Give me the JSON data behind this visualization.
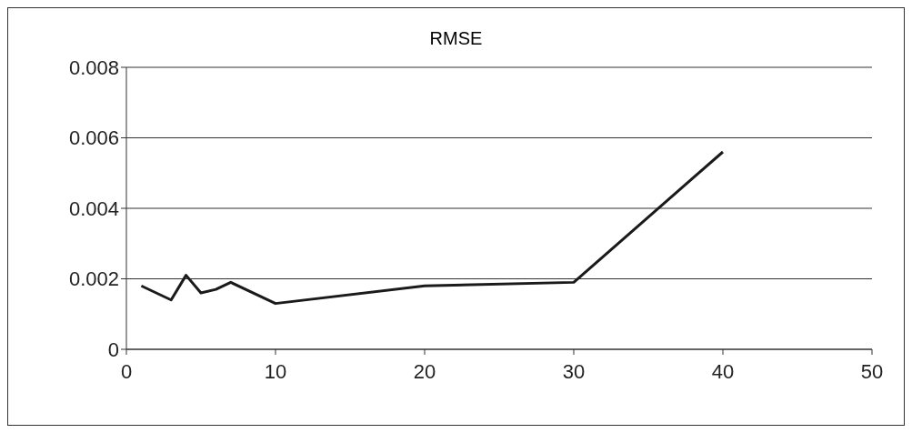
{
  "chart_data": {
    "type": "line",
    "title": "RMSE",
    "x": [
      1,
      3,
      4,
      5,
      6,
      7,
      10,
      20,
      30,
      40
    ],
    "series": [
      {
        "color": "#1a1a1a",
        "values": [
          0.0018,
          0.0014,
          0.0021,
          0.0016,
          0.0017,
          0.0019,
          0.0013,
          0.0018,
          0.0019,
          0.0056
        ]
      }
    ],
    "xlim": [
      0,
      50
    ],
    "xticks": [
      0,
      10,
      20,
      30,
      40,
      50
    ],
    "ylim": [
      0,
      0.008
    ],
    "yticks": [
      0,
      0.002,
      0.004,
      0.006,
      0.008
    ],
    "grid": "y",
    "marker": "none",
    "line_style": "solid"
  }
}
